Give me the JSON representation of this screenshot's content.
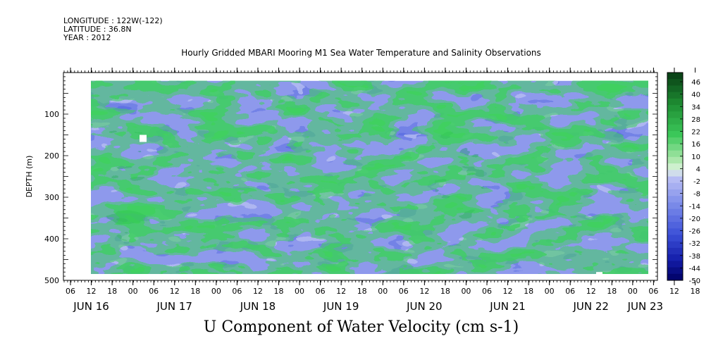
{
  "header": {
    "longitude": "LONGITUDE : 122W(-122)",
    "latitude": "LATITUDE : 36.8N",
    "year": "YEAR : 2012"
  },
  "chart_data": {
    "type": "heatmap",
    "title": "Hourly Gridded MBARI Mooring M1 Sea Water Temperature and Salinity Observations",
    "xlabel": "U Component of Water Velocity (cm s-1)",
    "ylabel": "DEPTH (m)",
    "ylim": [
      500,
      0
    ],
    "y_ticks": [
      100,
      200,
      300,
      400,
      500
    ],
    "x_hour_ticks": [
      "06",
      "12",
      "18",
      "00",
      "06",
      "12",
      "18",
      "00",
      "06",
      "12",
      "18",
      "00",
      "06",
      "12",
      "18",
      "00",
      "06",
      "12",
      "18",
      "00",
      "06",
      "12",
      "18",
      "00",
      "06",
      "12",
      "18",
      "00",
      "06",
      "12",
      "18",
      "00"
    ],
    "x_day_labels": [
      "JUN 16",
      "JUN 17",
      "JUN 18",
      "JUN 19",
      "JUN 20",
      "JUN 21",
      "JUN 22",
      "JUN 23"
    ],
    "colorbar_labels": [
      "46",
      "40",
      "34",
      "28",
      "22",
      "16",
      "10",
      "4",
      "-2",
      "-8",
      "-14",
      "-20",
      "-26",
      "-32",
      "-38",
      "-44",
      "-50"
    ],
    "colorbar_range": [
      -50,
      46
    ],
    "data_extent_depth": [
      20,
      485
    ],
    "approx_mean_u_by_day": [
      {
        "day": "JUN 16",
        "u": 8
      },
      {
        "day": "JUN 17",
        "u": -8
      },
      {
        "day": "JUN 18",
        "u": -14
      },
      {
        "day": "JUN 19",
        "u": -8
      },
      {
        "day": "JUN 20",
        "u": 6
      },
      {
        "day": "JUN 21",
        "u": -4
      },
      {
        "day": "JUN 22",
        "u": -10
      }
    ],
    "colors": {
      "positive_max": "#0b3d12",
      "positive": "#2ecc55",
      "near_zero": "#d9f2d9",
      "negative": "#6f7fe6",
      "negative_max": "#000066"
    }
  }
}
